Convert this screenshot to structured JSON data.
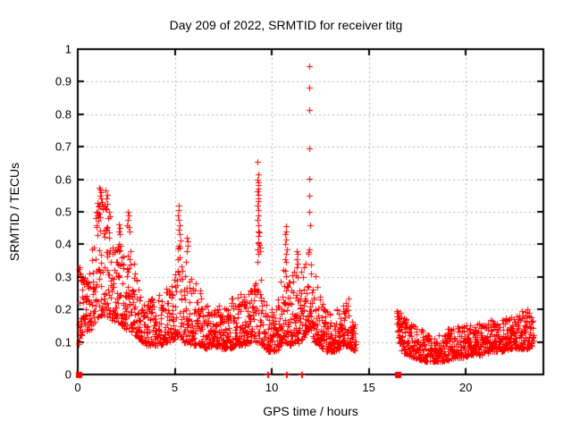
{
  "chart_data": {
    "type": "scatter",
    "title": "Day 209 of 2022, SRMTID for receiver titg",
    "xlabel": "GPS time / hours",
    "ylabel": "SRMTID / TECUs",
    "xlim": [
      0,
      24
    ],
    "ylim": [
      0,
      1
    ],
    "xticks": [
      0,
      5,
      10,
      15,
      20
    ],
    "yticks": [
      0,
      0.1,
      0.2,
      0.3,
      0.4,
      0.5,
      0.6,
      0.7,
      0.8,
      0.9,
      1
    ],
    "grid": true,
    "legend": "none",
    "marker": {
      "shape": "plus",
      "color": "#ff0000",
      "size": 7
    },
    "grid_color": "#b4b4b4",
    "border_color": "#000000",
    "peak_points": [
      [
        0.08,
        0.33
      ],
      [
        0.1,
        0.31
      ],
      [
        0.13,
        0.29
      ],
      [
        0.9,
        0.48
      ],
      [
        0.95,
        0.5
      ],
      [
        1.0,
        0.49
      ],
      [
        1.1,
        0.52
      ],
      [
        1.12,
        0.575
      ],
      [
        1.15,
        0.55
      ],
      [
        1.17,
        0.568
      ],
      [
        1.2,
        0.542
      ],
      [
        1.22,
        0.56
      ],
      [
        1.25,
        0.53
      ],
      [
        1.28,
        0.51
      ],
      [
        1.42,
        0.51
      ],
      [
        1.45,
        0.565
      ],
      [
        1.48,
        0.54
      ],
      [
        1.5,
        0.552
      ],
      [
        1.53,
        0.525
      ],
      [
        1.58,
        0.48
      ],
      [
        1.62,
        0.5
      ],
      [
        2.1,
        0.44
      ],
      [
        2.12,
        0.462
      ],
      [
        2.15,
        0.45
      ],
      [
        2.18,
        0.43
      ],
      [
        2.55,
        0.46
      ],
      [
        2.58,
        0.5
      ],
      [
        2.6,
        0.475
      ],
      [
        2.62,
        0.49
      ],
      [
        2.65,
        0.44
      ],
      [
        5.18,
        0.49
      ],
      [
        5.19,
        0.445
      ],
      [
        5.2,
        0.52
      ],
      [
        5.21,
        0.475
      ],
      [
        5.22,
        0.505
      ],
      [
        5.23,
        0.43
      ],
      [
        5.24,
        0.46
      ],
      [
        5.63,
        0.42
      ],
      [
        5.64,
        0.38
      ],
      [
        5.66,
        0.41
      ],
      [
        5.68,
        0.395
      ],
      [
        9.27,
        0.655
      ],
      [
        9.27,
        0.52
      ],
      [
        9.28,
        0.6
      ],
      [
        9.28,
        0.562
      ],
      [
        9.28,
        0.475
      ],
      [
        9.28,
        0.385
      ],
      [
        9.29,
        0.582
      ],
      [
        9.29,
        0.532
      ],
      [
        9.29,
        0.44
      ],
      [
        9.3,
        0.615
      ],
      [
        9.3,
        0.571
      ],
      [
        9.3,
        0.542
      ],
      [
        9.3,
        0.49
      ],
      [
        9.3,
        0.425
      ],
      [
        9.3,
        0.37
      ],
      [
        9.31,
        0.592
      ],
      [
        9.31,
        0.552
      ],
      [
        9.31,
        0.46
      ],
      [
        9.32,
        0.505
      ],
      [
        9.32,
        0.405
      ],
      [
        10.7,
        0.43
      ],
      [
        10.7,
        0.355
      ],
      [
        10.71,
        0.4
      ],
      [
        10.72,
        0.455
      ],
      [
        10.73,
        0.37
      ],
      [
        10.74,
        0.415
      ],
      [
        10.75,
        0.44
      ],
      [
        10.75,
        0.345
      ],
      [
        10.76,
        0.385
      ],
      [
        11.27,
        0.33
      ],
      [
        11.28,
        0.38
      ],
      [
        11.3,
        0.355
      ],
      [
        11.32,
        0.37
      ],
      [
        11.35,
        0.34
      ],
      [
        11.93,
        0.947
      ],
      [
        11.94,
        0.882
      ],
      [
        11.93,
        0.812
      ],
      [
        11.94,
        0.695
      ],
      [
        11.95,
        0.602
      ],
      [
        11.93,
        0.5
      ],
      [
        11.95,
        0.55
      ],
      [
        11.96,
        0.46
      ],
      [
        16.47,
        0.19
      ],
      [
        16.55,
        0.16
      ],
      [
        22.9,
        0.195
      ],
      [
        23.15,
        0.2
      ],
      [
        23.25,
        0.19
      ]
    ],
    "zero_pairs": [
      9.76,
      9.81,
      10.74,
      10.79,
      11.5,
      11.55
    ],
    "zero_runs": [
      [
        0.0,
        0.12
      ],
      [
        16.42,
        16.56
      ]
    ],
    "scatter_model": {
      "seed": 209,
      "step": 0.02,
      "points_per_step": 2,
      "skew": 1.8,
      "segments": [
        {
          "start": 0.05,
          "end": 14.32,
          "envelope": [
            [
              0.05,
              0.09,
              0.33
            ],
            [
              0.3,
              0.14,
              0.3
            ],
            [
              0.6,
              0.13,
              0.32
            ],
            [
              0.85,
              0.16,
              0.45
            ],
            [
              1.1,
              0.18,
              0.56
            ],
            [
              1.35,
              0.18,
              0.52
            ],
            [
              1.55,
              0.17,
              0.55
            ],
            [
              1.75,
              0.16,
              0.42
            ],
            [
              2.0,
              0.16,
              0.4
            ],
            [
              2.15,
              0.16,
              0.46
            ],
            [
              2.4,
              0.14,
              0.36
            ],
            [
              2.6,
              0.14,
              0.5
            ],
            [
              2.8,
              0.13,
              0.38
            ],
            [
              3.1,
              0.11,
              0.3
            ],
            [
              3.5,
              0.09,
              0.22
            ],
            [
              3.9,
              0.09,
              0.24
            ],
            [
              4.3,
              0.09,
              0.26
            ],
            [
              4.7,
              0.1,
              0.28
            ],
            [
              5.0,
              0.11,
              0.3
            ],
            [
              5.2,
              0.12,
              0.5
            ],
            [
              5.45,
              0.1,
              0.3
            ],
            [
              5.65,
              0.1,
              0.4
            ],
            [
              5.9,
              0.09,
              0.3
            ],
            [
              6.2,
              0.09,
              0.28
            ],
            [
              6.6,
              0.08,
              0.22
            ],
            [
              7.0,
              0.09,
              0.26
            ],
            [
              7.4,
              0.08,
              0.2
            ],
            [
              7.8,
              0.08,
              0.22
            ],
            [
              8.2,
              0.09,
              0.26
            ],
            [
              8.6,
              0.09,
              0.24
            ],
            [
              9.0,
              0.1,
              0.28
            ],
            [
              9.3,
              0.1,
              0.5
            ],
            [
              9.5,
              0.09,
              0.26
            ],
            [
              9.8,
              0.07,
              0.2
            ],
            [
              10.1,
              0.07,
              0.2
            ],
            [
              10.4,
              0.08,
              0.24
            ],
            [
              10.7,
              0.1,
              0.4
            ],
            [
              10.95,
              0.09,
              0.28
            ],
            [
              11.2,
              0.1,
              0.36
            ],
            [
              11.45,
              0.09,
              0.3
            ],
            [
              11.7,
              0.12,
              0.36
            ],
            [
              11.95,
              0.15,
              0.48
            ],
            [
              12.15,
              0.1,
              0.32
            ],
            [
              12.45,
              0.09,
              0.26
            ],
            [
              12.8,
              0.07,
              0.2
            ],
            [
              13.2,
              0.07,
              0.19
            ],
            [
              13.6,
              0.08,
              0.22
            ],
            [
              13.95,
              0.09,
              0.24
            ],
            [
              14.2,
              0.07,
              0.17
            ],
            [
              14.32,
              0.08,
              0.15
            ]
          ]
        },
        {
          "start": 16.45,
          "end": 23.5,
          "envelope": [
            [
              16.45,
              0.14,
              0.2
            ],
            [
              16.7,
              0.07,
              0.19
            ],
            [
              17.0,
              0.06,
              0.17
            ],
            [
              17.4,
              0.05,
              0.15
            ],
            [
              17.8,
              0.04,
              0.14
            ],
            [
              18.3,
              0.04,
              0.12
            ],
            [
              18.8,
              0.04,
              0.13
            ],
            [
              19.3,
              0.05,
              0.15
            ],
            [
              19.8,
              0.05,
              0.15
            ],
            [
              20.3,
              0.06,
              0.16
            ],
            [
              20.8,
              0.06,
              0.16
            ],
            [
              21.3,
              0.07,
              0.17
            ],
            [
              21.8,
              0.07,
              0.17
            ],
            [
              22.3,
              0.08,
              0.18
            ],
            [
              22.8,
              0.08,
              0.19
            ],
            [
              23.2,
              0.08,
              0.2
            ],
            [
              23.5,
              0.09,
              0.17
            ]
          ]
        }
      ]
    }
  }
}
